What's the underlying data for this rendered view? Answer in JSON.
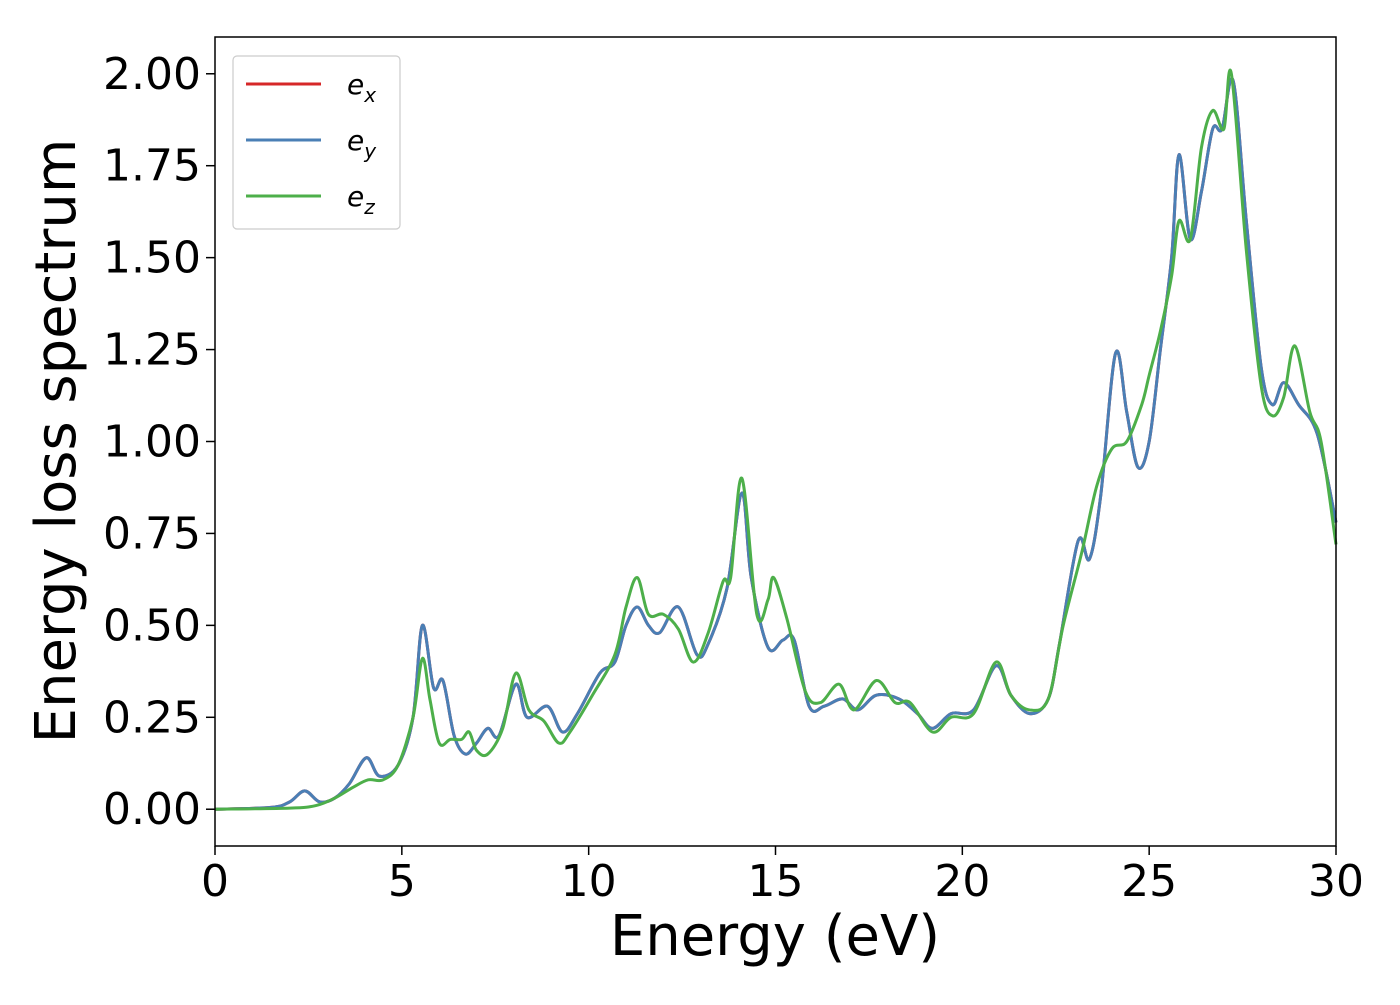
{
  "chart_data": {
    "type": "line",
    "title": "",
    "xlabel": "Energy (eV)",
    "ylabel": "Energy loss spectrum",
    "xlim": [
      0,
      30
    ],
    "ylim": [
      -0.1,
      2.1
    ],
    "x_ticks": [
      0,
      5,
      10,
      15,
      20,
      25,
      30
    ],
    "x_tick_labels": [
      "0",
      "5",
      "10",
      "15",
      "20",
      "25",
      "30"
    ],
    "y_ticks": [
      0,
      0.25,
      0.5,
      0.75,
      1.0,
      1.25,
      1.5,
      1.75,
      2.0
    ],
    "y_tick_labels": [
      "0.00",
      "0.25",
      "0.50",
      "0.75",
      "1.00",
      "1.25",
      "1.50",
      "1.75",
      "2.00"
    ],
    "grid": false,
    "legend_position": "top-left",
    "series": [
      {
        "name": "e_x",
        "legend_main": "e",
        "legend_sub": "x",
        "color": "#d62728",
        "points": [
          [
            0,
            0
          ],
          [
            1.5,
            0.005
          ],
          [
            2.0,
            0.02
          ],
          [
            2.4,
            0.05
          ],
          [
            2.8,
            0.02
          ],
          [
            3.2,
            0.03
          ],
          [
            3.6,
            0.07
          ],
          [
            4.05,
            0.14
          ],
          [
            4.4,
            0.09
          ],
          [
            4.9,
            0.12
          ],
          [
            5.3,
            0.25
          ],
          [
            5.55,
            0.5
          ],
          [
            5.85,
            0.33
          ],
          [
            6.1,
            0.35
          ],
          [
            6.4,
            0.2
          ],
          [
            6.7,
            0.15
          ],
          [
            7.0,
            0.18
          ],
          [
            7.3,
            0.22
          ],
          [
            7.6,
            0.2
          ],
          [
            8.05,
            0.34
          ],
          [
            8.35,
            0.25
          ],
          [
            8.9,
            0.28
          ],
          [
            9.3,
            0.21
          ],
          [
            9.7,
            0.26
          ],
          [
            10.3,
            0.37
          ],
          [
            10.7,
            0.4
          ],
          [
            11.0,
            0.5
          ],
          [
            11.3,
            0.55
          ],
          [
            11.6,
            0.5
          ],
          [
            11.9,
            0.48
          ],
          [
            12.4,
            0.55
          ],
          [
            12.9,
            0.42
          ],
          [
            13.2,
            0.45
          ],
          [
            13.7,
            0.6
          ],
          [
            14.1,
            0.86
          ],
          [
            14.35,
            0.63
          ],
          [
            14.8,
            0.44
          ],
          [
            15.2,
            0.46
          ],
          [
            15.5,
            0.46
          ],
          [
            15.9,
            0.28
          ],
          [
            16.3,
            0.28
          ],
          [
            16.8,
            0.3
          ],
          [
            17.2,
            0.27
          ],
          [
            17.7,
            0.31
          ],
          [
            18.3,
            0.3
          ],
          [
            18.8,
            0.26
          ],
          [
            19.2,
            0.22
          ],
          [
            19.7,
            0.26
          ],
          [
            20.3,
            0.27
          ],
          [
            20.9,
            0.39
          ],
          [
            21.3,
            0.31
          ],
          [
            21.8,
            0.26
          ],
          [
            22.3,
            0.3
          ],
          [
            22.6,
            0.45
          ],
          [
            23.1,
            0.73
          ],
          [
            23.4,
            0.68
          ],
          [
            23.7,
            0.85
          ],
          [
            24.1,
            1.24
          ],
          [
            24.4,
            1.08
          ],
          [
            24.7,
            0.93
          ],
          [
            25.0,
            1.0
          ],
          [
            25.3,
            1.25
          ],
          [
            25.6,
            1.5
          ],
          [
            25.8,
            1.78
          ],
          [
            26.1,
            1.55
          ],
          [
            26.4,
            1.68
          ],
          [
            26.7,
            1.85
          ],
          [
            26.95,
            1.85
          ],
          [
            27.25,
            1.98
          ],
          [
            27.6,
            1.6
          ],
          [
            28.0,
            1.2
          ],
          [
            28.3,
            1.1
          ],
          [
            28.6,
            1.16
          ],
          [
            29.0,
            1.1
          ],
          [
            29.5,
            1.02
          ],
          [
            30.0,
            0.78
          ]
        ]
      },
      {
        "name": "e_y",
        "legend_main": "e",
        "legend_sub": "y",
        "color": "#4a7fb5",
        "points": [
          [
            0,
            0
          ],
          [
            1.5,
            0.005
          ],
          [
            2.0,
            0.02
          ],
          [
            2.4,
            0.05
          ],
          [
            2.8,
            0.02
          ],
          [
            3.2,
            0.03
          ],
          [
            3.6,
            0.07
          ],
          [
            4.05,
            0.14
          ],
          [
            4.4,
            0.09
          ],
          [
            4.9,
            0.12
          ],
          [
            5.3,
            0.25
          ],
          [
            5.55,
            0.5
          ],
          [
            5.85,
            0.33
          ],
          [
            6.1,
            0.35
          ],
          [
            6.4,
            0.2
          ],
          [
            6.7,
            0.15
          ],
          [
            7.0,
            0.18
          ],
          [
            7.3,
            0.22
          ],
          [
            7.6,
            0.2
          ],
          [
            8.05,
            0.34
          ],
          [
            8.35,
            0.25
          ],
          [
            8.9,
            0.28
          ],
          [
            9.3,
            0.21
          ],
          [
            9.7,
            0.26
          ],
          [
            10.3,
            0.37
          ],
          [
            10.7,
            0.4
          ],
          [
            11.0,
            0.5
          ],
          [
            11.3,
            0.55
          ],
          [
            11.6,
            0.5
          ],
          [
            11.9,
            0.48
          ],
          [
            12.4,
            0.55
          ],
          [
            12.9,
            0.42
          ],
          [
            13.2,
            0.45
          ],
          [
            13.7,
            0.6
          ],
          [
            14.1,
            0.86
          ],
          [
            14.35,
            0.63
          ],
          [
            14.8,
            0.44
          ],
          [
            15.2,
            0.46
          ],
          [
            15.5,
            0.46
          ],
          [
            15.9,
            0.28
          ],
          [
            16.3,
            0.28
          ],
          [
            16.8,
            0.3
          ],
          [
            17.2,
            0.27
          ],
          [
            17.7,
            0.31
          ],
          [
            18.3,
            0.3
          ],
          [
            18.8,
            0.26
          ],
          [
            19.2,
            0.22
          ],
          [
            19.7,
            0.26
          ],
          [
            20.3,
            0.27
          ],
          [
            20.9,
            0.39
          ],
          [
            21.3,
            0.31
          ],
          [
            21.8,
            0.26
          ],
          [
            22.3,
            0.3
          ],
          [
            22.6,
            0.45
          ],
          [
            23.1,
            0.73
          ],
          [
            23.4,
            0.68
          ],
          [
            23.7,
            0.85
          ],
          [
            24.1,
            1.24
          ],
          [
            24.4,
            1.08
          ],
          [
            24.7,
            0.93
          ],
          [
            25.0,
            1.0
          ],
          [
            25.3,
            1.25
          ],
          [
            25.6,
            1.5
          ],
          [
            25.8,
            1.78
          ],
          [
            26.1,
            1.55
          ],
          [
            26.4,
            1.68
          ],
          [
            26.7,
            1.85
          ],
          [
            26.95,
            1.85
          ],
          [
            27.25,
            1.98
          ],
          [
            27.6,
            1.6
          ],
          [
            28.0,
            1.2
          ],
          [
            28.3,
            1.1
          ],
          [
            28.6,
            1.16
          ],
          [
            29.0,
            1.1
          ],
          [
            29.5,
            1.02
          ],
          [
            30.0,
            0.78
          ]
        ]
      },
      {
        "name": "e_z",
        "legend_main": "e",
        "legend_sub": "z",
        "color": "#4daf4a",
        "points": [
          [
            0,
            0
          ],
          [
            2.0,
            0.003
          ],
          [
            2.7,
            0.01
          ],
          [
            3.2,
            0.03
          ],
          [
            3.7,
            0.06
          ],
          [
            4.1,
            0.08
          ],
          [
            4.5,
            0.08
          ],
          [
            4.9,
            0.12
          ],
          [
            5.3,
            0.25
          ],
          [
            5.55,
            0.41
          ],
          [
            5.75,
            0.3
          ],
          [
            6.0,
            0.18
          ],
          [
            6.3,
            0.19
          ],
          [
            6.6,
            0.19
          ],
          [
            6.8,
            0.21
          ],
          [
            7.0,
            0.16
          ],
          [
            7.3,
            0.15
          ],
          [
            7.7,
            0.22
          ],
          [
            8.05,
            0.37
          ],
          [
            8.4,
            0.27
          ],
          [
            8.8,
            0.24
          ],
          [
            9.2,
            0.18
          ],
          [
            9.5,
            0.21
          ],
          [
            10.1,
            0.31
          ],
          [
            10.7,
            0.42
          ],
          [
            11.0,
            0.55
          ],
          [
            11.3,
            0.63
          ],
          [
            11.6,
            0.53
          ],
          [
            12.0,
            0.53
          ],
          [
            12.4,
            0.49
          ],
          [
            12.8,
            0.4
          ],
          [
            13.2,
            0.48
          ],
          [
            13.6,
            0.62
          ],
          [
            13.8,
            0.63
          ],
          [
            14.1,
            0.9
          ],
          [
            14.5,
            0.53
          ],
          [
            14.8,
            0.57
          ],
          [
            14.95,
            0.63
          ],
          [
            15.3,
            0.52
          ],
          [
            15.8,
            0.32
          ],
          [
            16.2,
            0.29
          ],
          [
            16.7,
            0.34
          ],
          [
            17.1,
            0.27
          ],
          [
            17.7,
            0.35
          ],
          [
            18.2,
            0.29
          ],
          [
            18.6,
            0.29
          ],
          [
            19.2,
            0.21
          ],
          [
            19.7,
            0.25
          ],
          [
            20.3,
            0.26
          ],
          [
            20.9,
            0.4
          ],
          [
            21.3,
            0.31
          ],
          [
            21.8,
            0.27
          ],
          [
            22.3,
            0.3
          ],
          [
            22.7,
            0.5
          ],
          [
            23.2,
            0.7
          ],
          [
            23.6,
            0.88
          ],
          [
            24.0,
            0.98
          ],
          [
            24.4,
            1.0
          ],
          [
            24.8,
            1.1
          ],
          [
            25.0,
            1.18
          ],
          [
            25.3,
            1.3
          ],
          [
            25.6,
            1.45
          ],
          [
            25.8,
            1.6
          ],
          [
            26.1,
            1.55
          ],
          [
            26.4,
            1.8
          ],
          [
            26.7,
            1.9
          ],
          [
            27.0,
            1.85
          ],
          [
            27.2,
            2.0
          ],
          [
            27.6,
            1.52
          ],
          [
            28.0,
            1.15
          ],
          [
            28.3,
            1.07
          ],
          [
            28.6,
            1.12
          ],
          [
            28.9,
            1.26
          ],
          [
            29.3,
            1.08
          ],
          [
            29.6,
            1.0
          ],
          [
            30.0,
            0.72
          ]
        ]
      }
    ]
  }
}
